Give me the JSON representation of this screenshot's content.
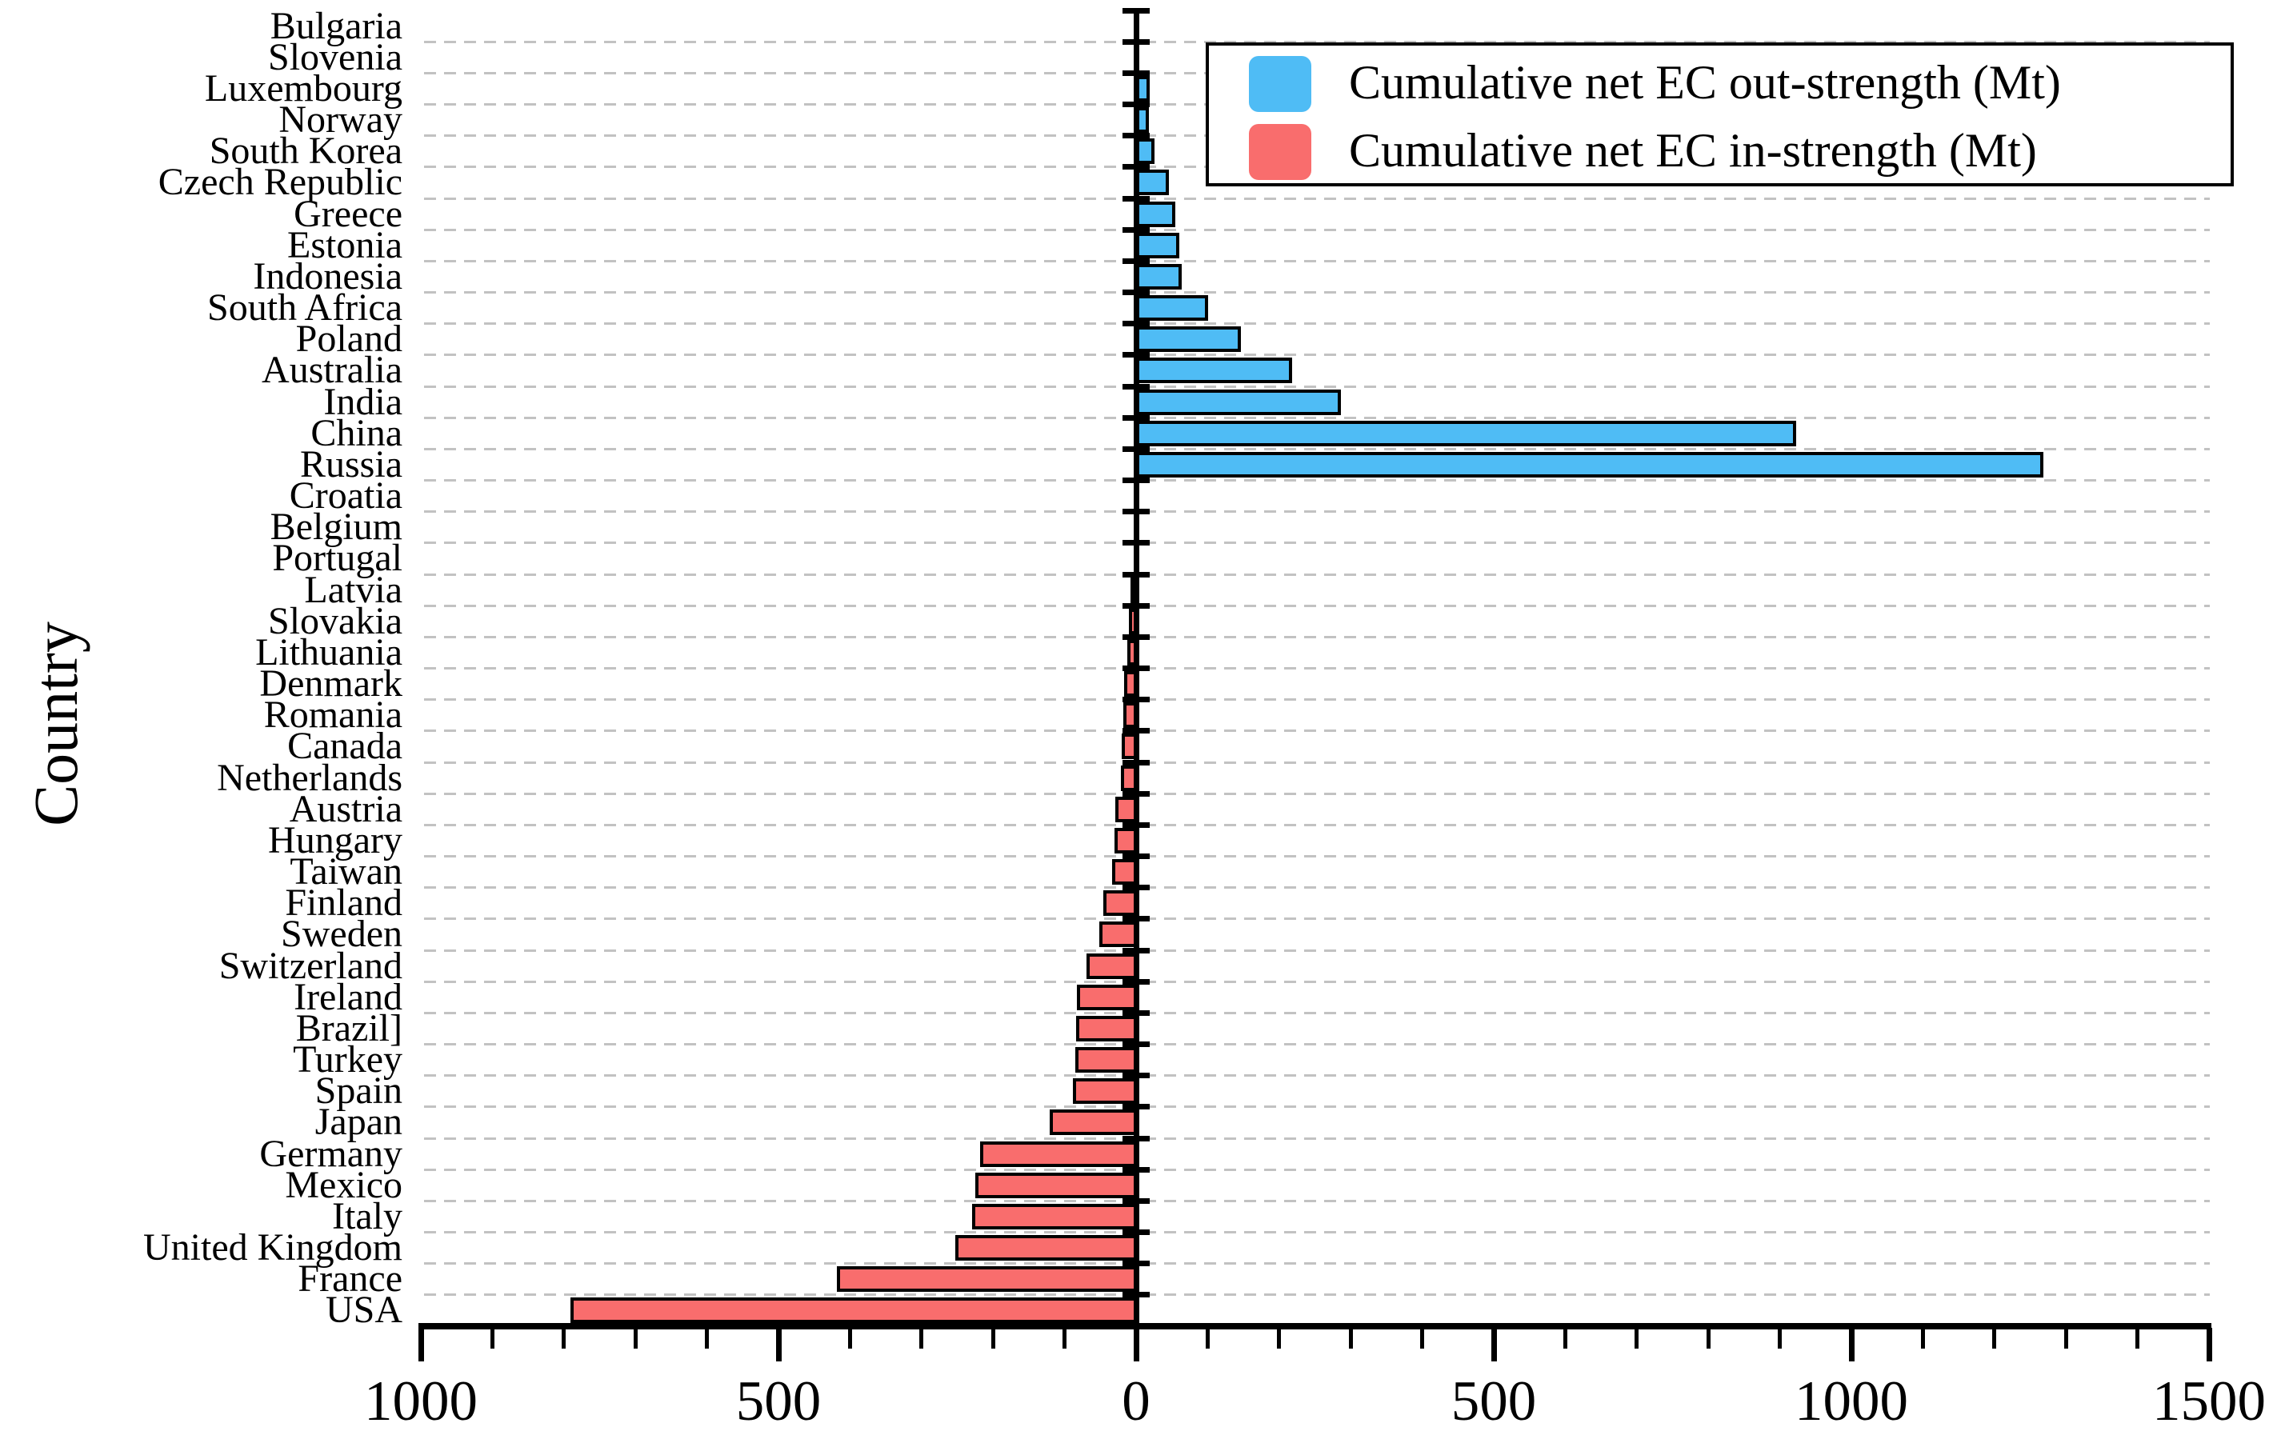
{
  "y_axis_title": "Country",
  "legend": {
    "out": {
      "label": "Cumulative net EC out-strength (Mt)",
      "color": "#4FBCF5"
    },
    "in": {
      "label": "Cumulative net EC in-strength (Mt)",
      "color": "#F96D6D"
    }
  },
  "x_axis": {
    "tick_values": [
      -1000,
      -500,
      0,
      500,
      1000,
      1500
    ],
    "tick_labels": [
      "1000",
      "500",
      "0",
      "500",
      "1000",
      "1500"
    ],
    "minor_step": 100
  },
  "chart_data": {
    "type": "bar",
    "orientation": "horizontal",
    "title": "",
    "xlabel": "",
    "ylabel": "Country",
    "xlim": [
      -1000,
      1500
    ],
    "grid": "dashed horizontal between category rows",
    "legend_position": "upper right",
    "categories": [
      "Bulgaria",
      "Slovenia",
      "Luxembourg",
      "Norway",
      "South Korea",
      "Czech Republic",
      "Greece",
      "Estonia",
      "Indonesia",
      "South Africa",
      "Poland",
      "Australia",
      "India",
      "China",
      "Russia",
      "Croatia",
      "Belgium",
      "Portugal",
      "Latvia",
      "Slovakia",
      "Lithuania",
      "Denmark",
      "Romania",
      "Canada",
      "Netherlands",
      "Austria",
      "Hungary",
      "Taiwan",
      "Finland",
      "Sweden",
      "Switzerland",
      "Ireland",
      "Brazil]",
      "Turkey",
      "Spain",
      "Japan",
      "Germany",
      "Mexico",
      "Italy",
      "United Kingdom",
      "France",
      "USA"
    ],
    "values": [
      0.5,
      1.5,
      16,
      14,
      22,
      43,
      52,
      57,
      60,
      97,
      143,
      215,
      283,
      920,
      1265,
      -0.3,
      -0.8,
      -1.5,
      -4,
      -7,
      -9,
      -13,
      -15,
      -17,
      -18,
      -26,
      -27,
      -30,
      -42,
      -48,
      -66,
      -79,
      -80,
      -82,
      -85,
      -117,
      -215,
      -221,
      -226,
      -250,
      -415,
      -788
    ],
    "series": [
      {
        "name": "Cumulative net EC out-strength (Mt)",
        "color": "#4FBCF5",
        "sign": "positive (bars extend right of zero)"
      },
      {
        "name": "Cumulative net EC in-strength (Mt)",
        "color": "#F96D6D",
        "sign": "negative (bars extend left of zero)"
      }
    ]
  }
}
